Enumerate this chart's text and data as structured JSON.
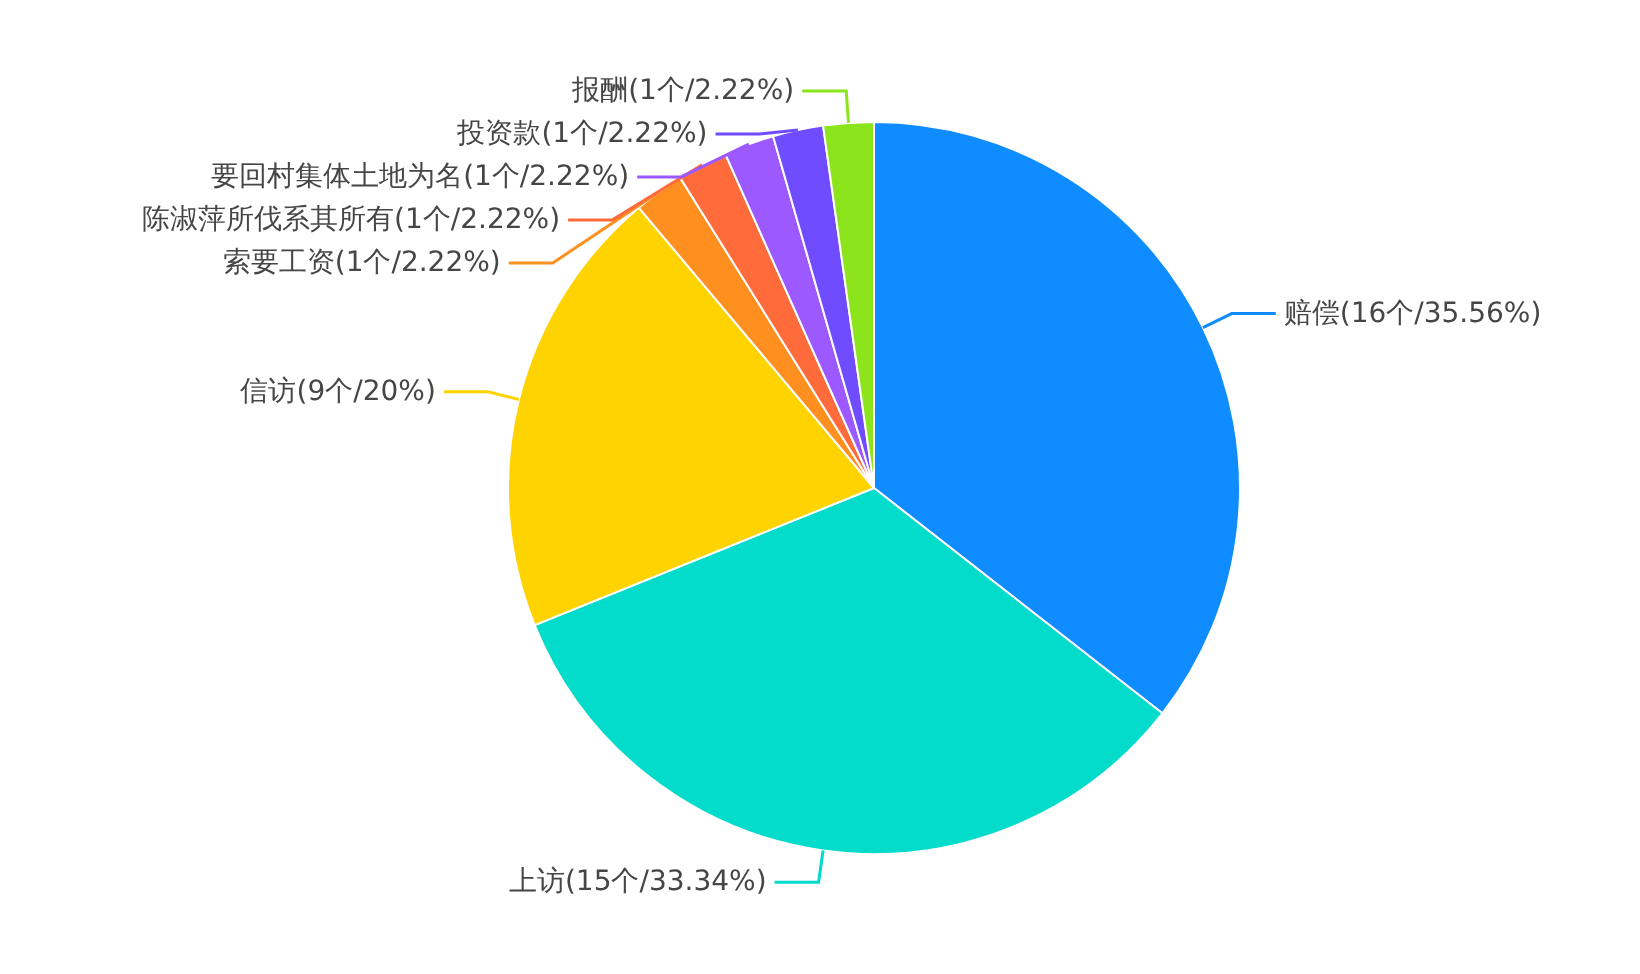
{
  "chart_data": {
    "type": "pie",
    "categories": [
      "赔偿",
      "上访",
      "信访",
      "索要工资",
      "陈淑萍所伐系其所有",
      "要回村集体土地为名",
      "投资款",
      "报酬"
    ],
    "values": [
      16,
      15,
      9,
      1,
      1,
      1,
      1,
      1
    ],
    "value_labels": [
      "(16个/35.56%)",
      "(15个/33.34%)",
      "(9个/20%)",
      "(1个/2.22%)",
      "(1个/2.22%)",
      "(1个/2.22%)",
      "(1个/2.22%)",
      "(1个/2.22%)"
    ],
    "colors": [
      "#0f8cff",
      "#03dbcb",
      "#ffd300",
      "#ff8f1f",
      "#ff6b3a",
      "#9c59ff",
      "#6f4cff",
      "#8be41c"
    ]
  }
}
